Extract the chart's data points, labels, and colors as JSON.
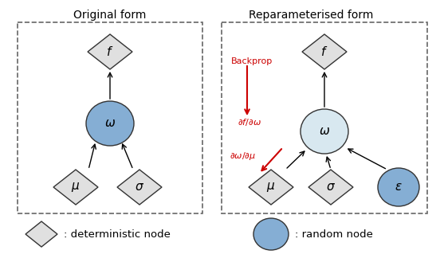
{
  "title_left": "Original form",
  "title_right": "Reparameterised form",
  "bg_color": "#ffffff",
  "diamond_fill": "#e0e0e0",
  "diamond_edge": "#333333",
  "circle_fill_blue": "#85aed4",
  "circle_fill_light": "#d8e8f0",
  "circle_edge": "#333333",
  "red_arrow_color": "#cc0000",
  "red_text_color": "#cc0000",
  "box_edge": "#666666",
  "legend_text1": ": deterministic node",
  "legend_text2": ": random node"
}
